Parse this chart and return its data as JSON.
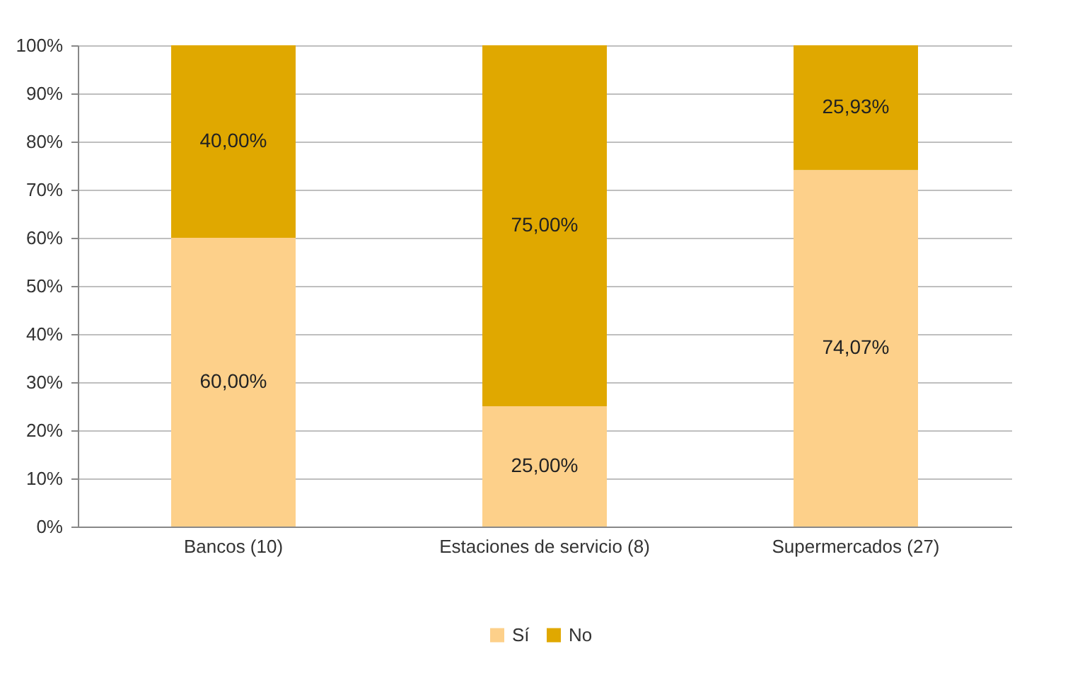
{
  "chart_data": {
    "type": "bar",
    "stacked": true,
    "categories": [
      "Bancos (10)",
      "Estaciones de servicio (8)",
      "Supermercados (27)"
    ],
    "series": [
      {
        "name": "Sí",
        "color": "#fdd08a",
        "values": [
          60,
          25,
          74.07
        ],
        "value_labels": [
          "60,00%",
          "25,00%",
          "74,07%"
        ]
      },
      {
        "name": "No",
        "color": "#e0a800",
        "values": [
          40,
          75,
          25.93
        ],
        "value_labels": [
          "40,00%",
          "75,00%",
          "25,93%"
        ]
      }
    ],
    "ylim": [
      0,
      100
    ],
    "yticks": [
      {
        "value": 0,
        "label": "0%"
      },
      {
        "value": 10,
        "label": "10%"
      },
      {
        "value": 20,
        "label": "20%"
      },
      {
        "value": 30,
        "label": "30%"
      },
      {
        "value": 40,
        "label": "40%"
      },
      {
        "value": 50,
        "label": "50%"
      },
      {
        "value": 60,
        "label": "60%"
      },
      {
        "value": 70,
        "label": "70%"
      },
      {
        "value": 80,
        "label": "80%"
      },
      {
        "value": 90,
        "label": "90%"
      },
      {
        "value": 100,
        "label": "100%"
      }
    ],
    "grid": "y",
    "legend": "bottom"
  }
}
